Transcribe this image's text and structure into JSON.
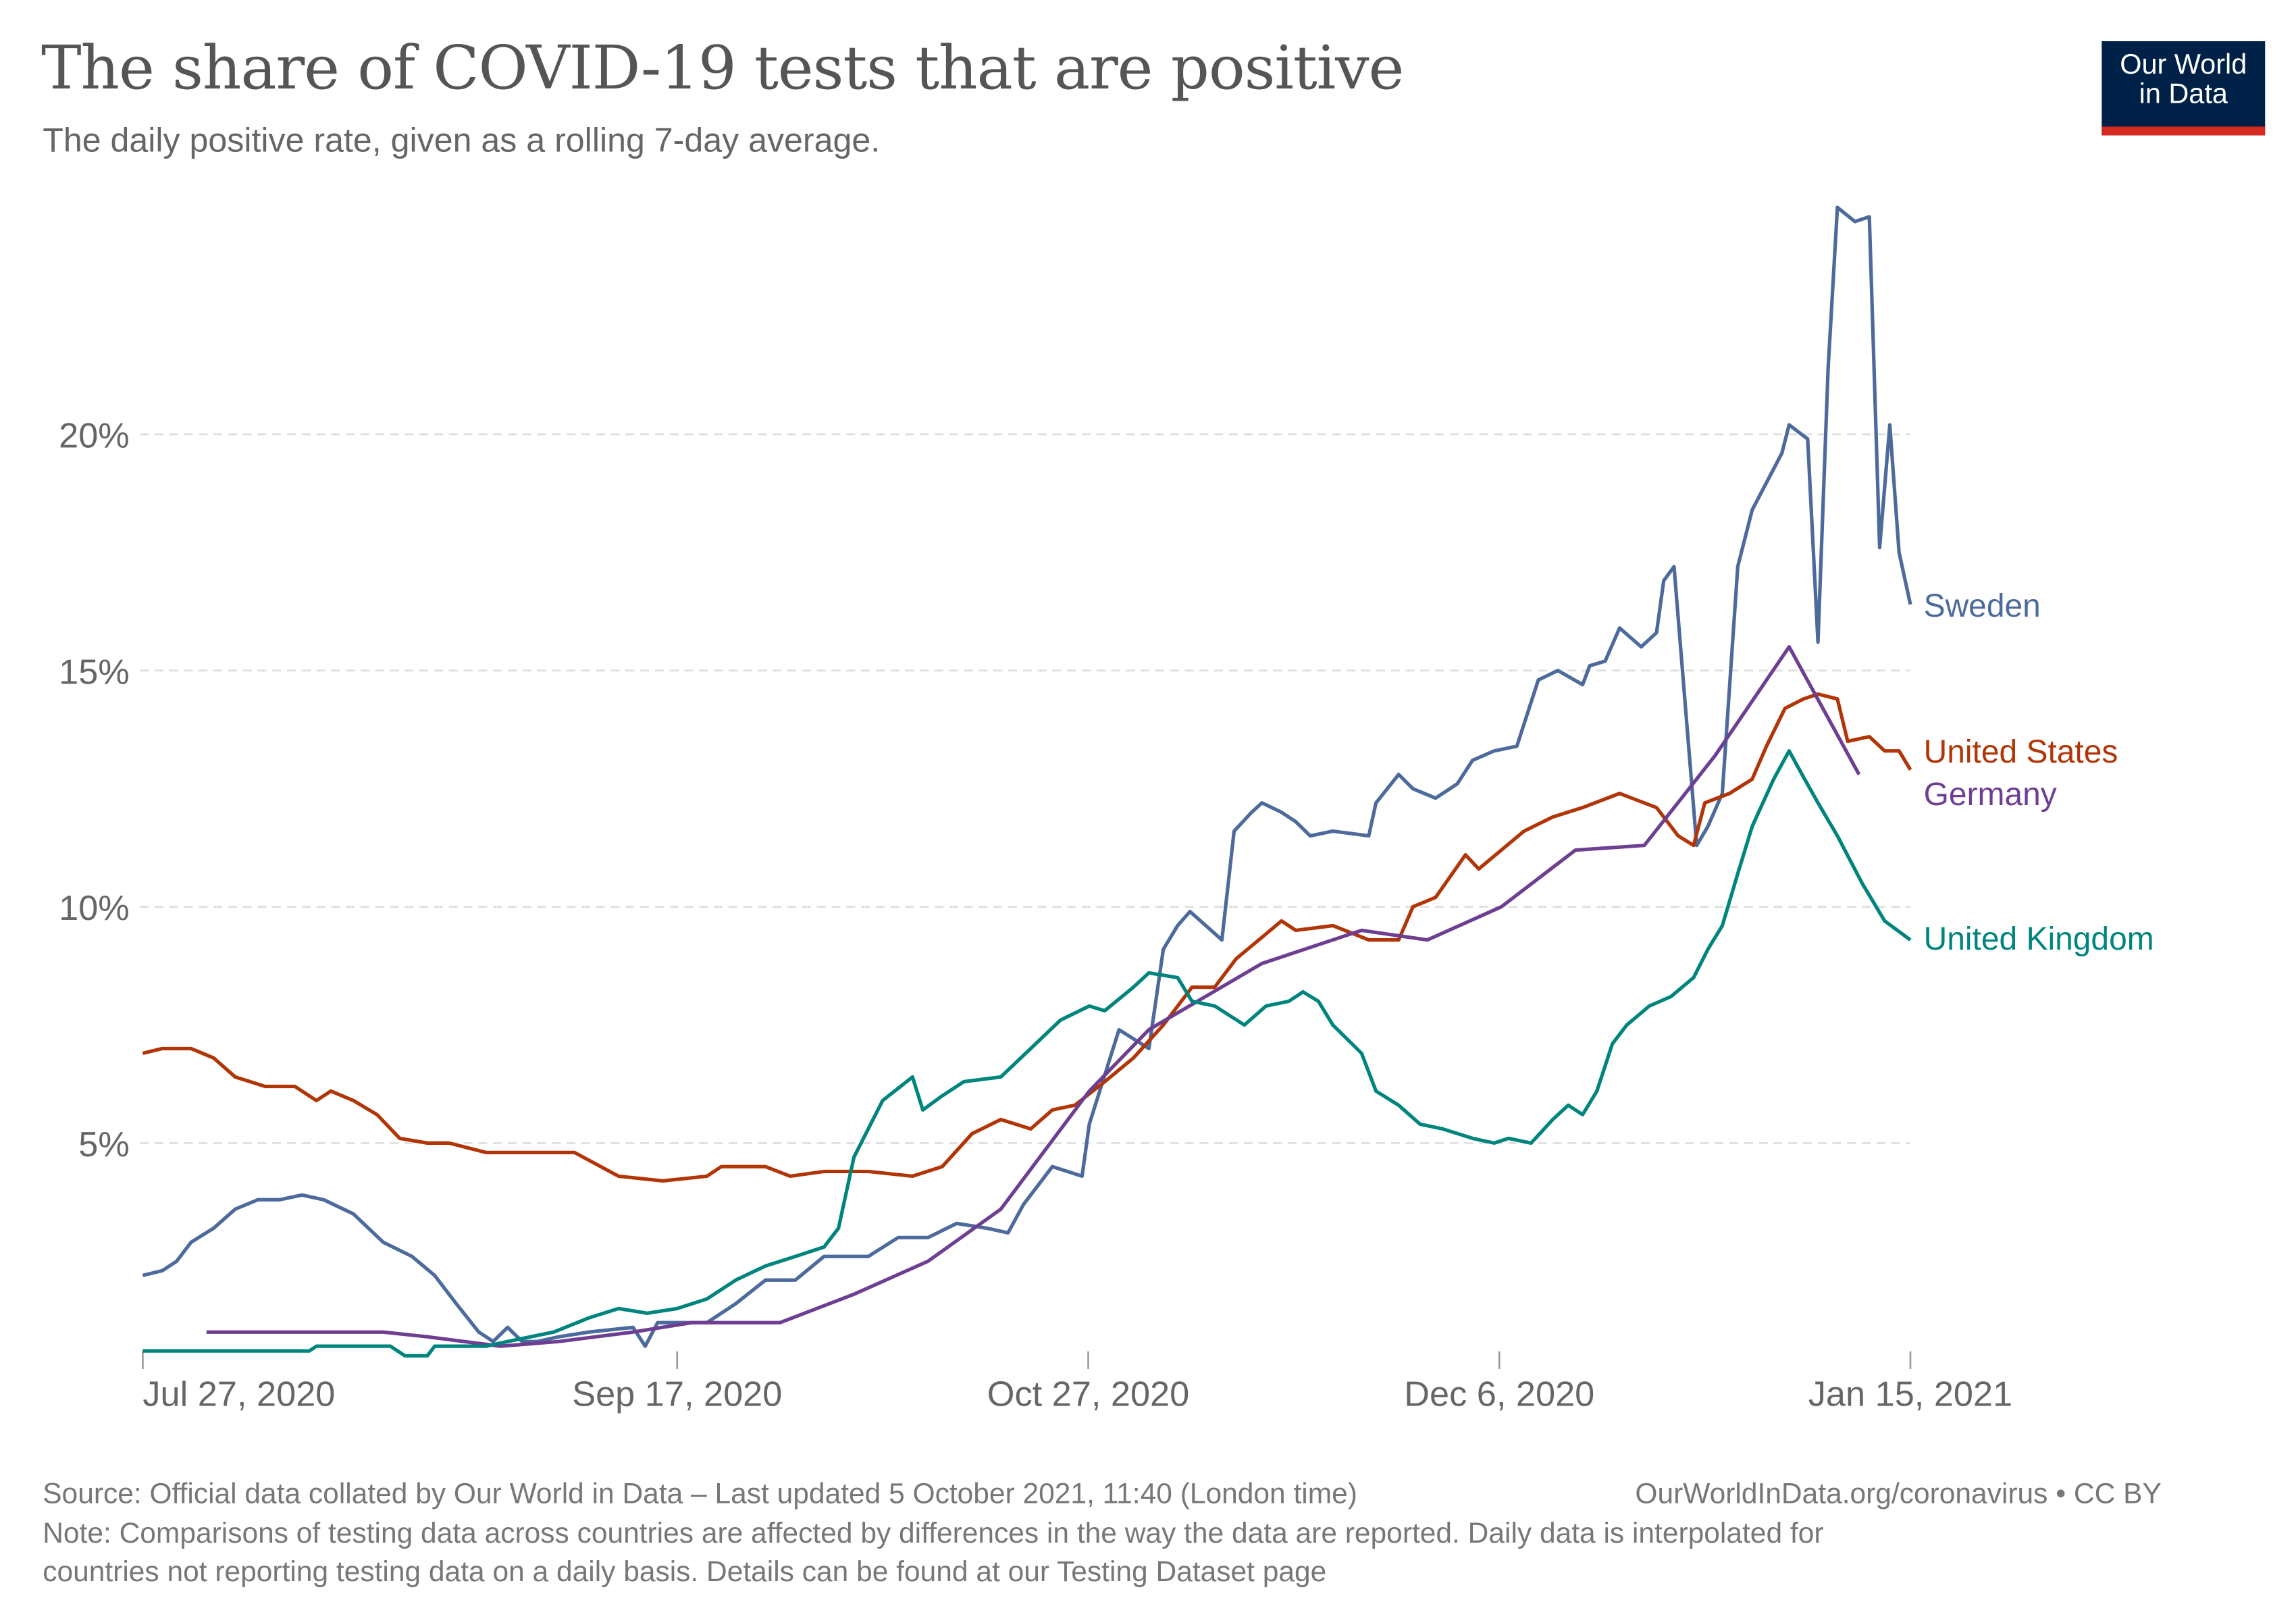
{
  "title": "The share of COVID-19 tests that are positive",
  "subtitle": "The daily positive rate, given as a rolling 7-day average.",
  "logo": {
    "line1": "Our World",
    "line2": "in Data"
  },
  "footer": {
    "source": "Source: Official data collated by Our World in Data – Last updated 5 October 2021, 11:40 (London time)",
    "link": "OurWorldInData.org/coronavirus • CC BY",
    "note_line1": "Note: Comparisons of testing data across countries are affected by differences in the way the data are reported. Daily data is interpolated for",
    "note_line2": "countries not reporting testing data on a daily basis. Details can be found at our Testing Dataset page"
  },
  "chart_data": {
    "type": "line",
    "title": "The share of COVID-19 tests that are positive",
    "xlabel": "",
    "ylabel": "",
    "x_unit": "days since Jul 27, 2020",
    "xlim": [
      0,
      172
    ],
    "ylim": [
      0,
      25
    ],
    "grid": true,
    "x_ticks": [
      {
        "day": 0,
        "label": "Jul 27, 2020"
      },
      {
        "day": 52,
        "label": "Sep 17, 2020"
      },
      {
        "day": 92,
        "label": "Oct 27, 2020"
      },
      {
        "day": 132,
        "label": "Dec 6, 2020"
      },
      {
        "day": 172,
        "label": "Jan 15, 2021"
      }
    ],
    "y_ticks": [
      {
        "value": 5,
        "label": "5%"
      },
      {
        "value": 10,
        "label": "10%"
      },
      {
        "value": 15,
        "label": "15%"
      },
      {
        "value": 20,
        "label": "20%"
      }
    ],
    "legend_placement": "right, inline at line ends",
    "series": [
      {
        "name": "Sweden",
        "color": "#4c6a9c",
        "points": [
          [
            0,
            2.2
          ],
          [
            1.9,
            2.3
          ],
          [
            3.3,
            2.5
          ],
          [
            4.7,
            2.9
          ],
          [
            6.9,
            3.2
          ],
          [
            9,
            3.6
          ],
          [
            11.2,
            3.8
          ],
          [
            13.3,
            3.8
          ],
          [
            15.5,
            3.9
          ],
          [
            17.6,
            3.8
          ],
          [
            20.5,
            3.5
          ],
          [
            23.4,
            2.9
          ],
          [
            26.2,
            2.6
          ],
          [
            28.4,
            2.2
          ],
          [
            30.5,
            1.6
          ],
          [
            32.7,
            1.0
          ],
          [
            34.1,
            0.8
          ],
          [
            35.5,
            1.1
          ],
          [
            36.9,
            0.8
          ],
          [
            38.4,
            0.8
          ],
          [
            40.5,
            0.9
          ],
          [
            43.4,
            1.0
          ],
          [
            47.7,
            1.1
          ],
          [
            48.9,
            0.7
          ],
          [
            50.1,
            1.2
          ],
          [
            54.9,
            1.2
          ],
          [
            57.7,
            1.6
          ],
          [
            60.6,
            2.1
          ],
          [
            63.5,
            2.1
          ],
          [
            66.3,
            2.6
          ],
          [
            70.6,
            2.6
          ],
          [
            73.5,
            3.0
          ],
          [
            76.4,
            3.0
          ],
          [
            79.2,
            3.3
          ],
          [
            82.1,
            3.2
          ],
          [
            84.2,
            3.1
          ],
          [
            85.7,
            3.7
          ],
          [
            88.5,
            4.5
          ],
          [
            91.4,
            4.3
          ],
          [
            92.1,
            5.4
          ],
          [
            95,
            7.4
          ],
          [
            97.9,
            7.0
          ],
          [
            99.3,
            9.1
          ],
          [
            100.7,
            9.6
          ],
          [
            101.9,
            9.9
          ],
          [
            105,
            9.3
          ],
          [
            106.2,
            11.6
          ],
          [
            107.9,
            12.0
          ],
          [
            108.9,
            12.2
          ],
          [
            110.8,
            12.0
          ],
          [
            112.2,
            11.8
          ],
          [
            113.6,
            11.5
          ],
          [
            115.8,
            11.6
          ],
          [
            119.3,
            11.5
          ],
          [
            120,
            12.2
          ],
          [
            122.2,
            12.8
          ],
          [
            123.6,
            12.5
          ],
          [
            125.8,
            12.3
          ],
          [
            127.9,
            12.6
          ],
          [
            129.4,
            13.1
          ],
          [
            131.5,
            13.3
          ],
          [
            133.7,
            13.4
          ],
          [
            135.8,
            14.8
          ],
          [
            137.7,
            15.0
          ],
          [
            140.1,
            14.7
          ],
          [
            140.8,
            15.1
          ],
          [
            142.3,
            15.2
          ],
          [
            143.7,
            15.9
          ],
          [
            145.8,
            15.5
          ],
          [
            147.3,
            15.8
          ],
          [
            148,
            16.9
          ],
          [
            149,
            17.2
          ],
          [
            151.2,
            11.3
          ],
          [
            152.3,
            11.7
          ],
          [
            153.7,
            12.4
          ],
          [
            155.2,
            17.2
          ],
          [
            156.6,
            18.4
          ],
          [
            159.5,
            19.6
          ],
          [
            160.2,
            20.2
          ],
          [
            162,
            19.9
          ],
          [
            163,
            15.6
          ],
          [
            164,
            21.4
          ],
          [
            164.9,
            24.8
          ],
          [
            166.6,
            24.5
          ],
          [
            168,
            24.6
          ],
          [
            169,
            17.6
          ],
          [
            170,
            20.2
          ],
          [
            170.9,
            17.5
          ],
          [
            172,
            16.4
          ]
        ]
      },
      {
        "name": "United States",
        "color": "#b13507",
        "points": [
          [
            0,
            6.9
          ],
          [
            1.9,
            7.0
          ],
          [
            4.7,
            7.0
          ],
          [
            6.9,
            6.8
          ],
          [
            9,
            6.4
          ],
          [
            11.9,
            6.2
          ],
          [
            14.8,
            6.2
          ],
          [
            16.9,
            5.9
          ],
          [
            18.3,
            6.1
          ],
          [
            20.5,
            5.9
          ],
          [
            22.8,
            5.6
          ],
          [
            25,
            5.1
          ],
          [
            27.7,
            5.0
          ],
          [
            29.8,
            5.0
          ],
          [
            33.4,
            4.8
          ],
          [
            37.7,
            4.8
          ],
          [
            42,
            4.8
          ],
          [
            46.3,
            4.3
          ],
          [
            50.6,
            4.2
          ],
          [
            54.9,
            4.3
          ],
          [
            56.3,
            4.5
          ],
          [
            60.6,
            4.5
          ],
          [
            63,
            4.3
          ],
          [
            66.3,
            4.4
          ],
          [
            70.6,
            4.4
          ],
          [
            74.9,
            4.3
          ],
          [
            77.8,
            4.5
          ],
          [
            80.7,
            5.2
          ],
          [
            83.5,
            5.5
          ],
          [
            86.4,
            5.3
          ],
          [
            88.5,
            5.7
          ],
          [
            90.7,
            5.8
          ],
          [
            93.6,
            6.3
          ],
          [
            96.4,
            6.8
          ],
          [
            99.3,
            7.5
          ],
          [
            102.1,
            8.3
          ],
          [
            104.3,
            8.3
          ],
          [
            106.4,
            8.9
          ],
          [
            108.6,
            9.3
          ],
          [
            110.8,
            9.7
          ],
          [
            112.2,
            9.5
          ],
          [
            115.8,
            9.6
          ],
          [
            119.3,
            9.3
          ],
          [
            122.2,
            9.3
          ],
          [
            123.6,
            10.0
          ],
          [
            125.8,
            10.2
          ],
          [
            128.7,
            11.1
          ],
          [
            130,
            10.8
          ],
          [
            134.4,
            11.6
          ],
          [
            137.2,
            11.9
          ],
          [
            140.1,
            12.1
          ],
          [
            143.7,
            12.4
          ],
          [
            147.3,
            12.1
          ],
          [
            149.4,
            11.5
          ],
          [
            150.9,
            11.3
          ],
          [
            152,
            12.2
          ],
          [
            154.4,
            12.4
          ],
          [
            156.6,
            12.7
          ],
          [
            158,
            13.4
          ],
          [
            159.8,
            14.2
          ],
          [
            161.6,
            14.4
          ],
          [
            163,
            14.5
          ],
          [
            164.9,
            14.4
          ],
          [
            165.9,
            13.5
          ],
          [
            168,
            13.6
          ],
          [
            169.5,
            13.3
          ],
          [
            170.9,
            13.3
          ],
          [
            172,
            12.9
          ]
        ]
      },
      {
        "name": "Germany",
        "color": "#6d3e91",
        "points": [
          [
            6.2,
            1.0
          ],
          [
            23.4,
            1.0
          ],
          [
            27.7,
            0.9
          ],
          [
            34.8,
            0.7
          ],
          [
            40.5,
            0.8
          ],
          [
            47.7,
            1.0
          ],
          [
            53.4,
            1.2
          ],
          [
            62,
            1.2
          ],
          [
            69.2,
            1.8
          ],
          [
            76.4,
            2.5
          ],
          [
            83.5,
            3.6
          ],
          [
            92.1,
            6.1
          ],
          [
            97.9,
            7.4
          ],
          [
            108.9,
            8.8
          ],
          [
            118.6,
            9.5
          ],
          [
            125,
            9.3
          ],
          [
            132.2,
            10.0
          ],
          [
            139.4,
            11.2
          ],
          [
            146.1,
            11.3
          ],
          [
            153,
            13.2
          ],
          [
            160.2,
            15.5
          ],
          [
            167,
            12.8
          ]
        ]
      },
      {
        "name": "United Kingdom",
        "color": "#00847e",
        "points": [
          [
            0,
            0.6
          ],
          [
            16.2,
            0.6
          ],
          [
            16.9,
            0.7
          ],
          [
            24.1,
            0.7
          ],
          [
            25.5,
            0.5
          ],
          [
            27.7,
            0.5
          ],
          [
            28.4,
            0.7
          ],
          [
            33.4,
            0.7
          ],
          [
            35.5,
            0.8
          ],
          [
            40,
            1.0
          ],
          [
            43.4,
            1.3
          ],
          [
            46.3,
            1.5
          ],
          [
            49.1,
            1.4
          ],
          [
            52,
            1.5
          ],
          [
            54.9,
            1.7
          ],
          [
            57.7,
            2.1
          ],
          [
            60.6,
            2.4
          ],
          [
            63.5,
            2.6
          ],
          [
            66.3,
            2.8
          ],
          [
            67.7,
            3.2
          ],
          [
            69.2,
            4.7
          ],
          [
            72,
            5.9
          ],
          [
            74.9,
            6.4
          ],
          [
            75.9,
            5.7
          ],
          [
            77.8,
            6.0
          ],
          [
            79.9,
            6.3
          ],
          [
            83.5,
            6.4
          ],
          [
            86.4,
            7.0
          ],
          [
            89.3,
            7.6
          ],
          [
            92.1,
            7.9
          ],
          [
            93.6,
            7.8
          ],
          [
            96.4,
            8.3
          ],
          [
            97.9,
            8.6
          ],
          [
            100.7,
            8.5
          ],
          [
            102.1,
            8.0
          ],
          [
            104.3,
            7.9
          ],
          [
            107.2,
            7.5
          ],
          [
            109.3,
            7.9
          ],
          [
            111.5,
            8.0
          ],
          [
            112.9,
            8.2
          ],
          [
            114.4,
            8.0
          ],
          [
            115.8,
            7.5
          ],
          [
            118.6,
            6.9
          ],
          [
            120,
            6.1
          ],
          [
            122.2,
            5.8
          ],
          [
            124.3,
            5.4
          ],
          [
            126.5,
            5.3
          ],
          [
            129.4,
            5.1
          ],
          [
            131.5,
            5.0
          ],
          [
            132.9,
            5.1
          ],
          [
            135.1,
            5.0
          ],
          [
            137.2,
            5.5
          ],
          [
            138.7,
            5.8
          ],
          [
            140.1,
            5.6
          ],
          [
            141.5,
            6.1
          ],
          [
            143,
            7.1
          ],
          [
            144.4,
            7.5
          ],
          [
            146.6,
            7.9
          ],
          [
            148.7,
            8.1
          ],
          [
            150.9,
            8.5
          ],
          [
            152.3,
            9.1
          ],
          [
            153.7,
            9.6
          ],
          [
            155.2,
            10.7
          ],
          [
            156.6,
            11.7
          ],
          [
            158.7,
            12.7
          ],
          [
            160.2,
            13.3
          ],
          [
            161.2,
            12.9
          ],
          [
            163,
            12.2
          ],
          [
            164.9,
            11.5
          ],
          [
            167.3,
            10.5
          ],
          [
            169.5,
            9.7
          ],
          [
            172,
            9.3
          ]
        ]
      }
    ]
  }
}
